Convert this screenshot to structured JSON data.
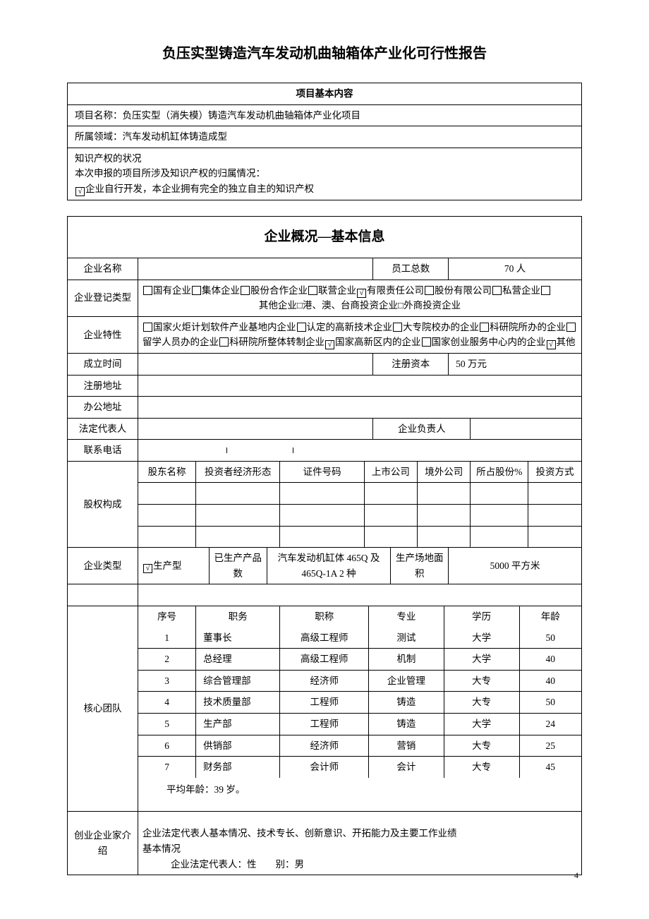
{
  "title": "负压实型铸造汽车发动机曲轴箱体产业化可行性报告",
  "page_num": "4",
  "project": {
    "header": "项目基本内容",
    "name_label": "项目名称：",
    "name_value": "负压实型（消失模）铸造汽车发动机曲轴箱体产业化项目",
    "field_label": "所属领域：",
    "field_value": "汽车发动机缸体铸造成型",
    "ip_status_label": "知识产权的状况",
    "ip_ownership_label": "本次申报的项目所涉及知识产权的归属情况：",
    "ip_option_text": "企业自行开发，本企业拥有完全的独立自主的知识产权"
  },
  "company": {
    "header": "企业概况—基本信息",
    "name_label": "企业名称",
    "staff_label": "员工总数",
    "staff_value": "70 人",
    "reg_type_label": "企业登记类型",
    "reg_type_line1_a": "国有企业",
    "reg_type_line1_b": "集体企业",
    "reg_type_line1_c": "股份合作企业",
    "reg_type_line1_d": "联营企业",
    "reg_type_line1_e": "有限责任公司",
    "reg_type_line1_f": "股份有限公司",
    "reg_type_line1_g": "私营企业",
    "reg_type_line2": "其他企业□港、澳、台商投资企业□外商投资企业",
    "trait_label": "企业特性",
    "trait_a": "国家火炬计划软件产业基地内企业",
    "trait_b": "认定的高新技术企业",
    "trait_c": "大专院校办的企业",
    "trait_d": "科研院所办的企业",
    "trait_e": "留学人员办的企业",
    "trait_f": "科研院所整体转制企业",
    "trait_g": "国家高新区内的企业",
    "trait_h": "国家创业服务中心内的企业",
    "trait_i": "其他",
    "founded_label": "成立时间",
    "capital_label": "注册资本",
    "capital_value": "50 万元",
    "reg_addr_label": "注册地址",
    "office_addr_label": "办公地址",
    "legal_rep_label": "法定代表人",
    "manager_label": "企业负责人",
    "phone_label": "联系电话",
    "equity_label": "股权构成",
    "equity_cols": {
      "c1": "股东名称",
      "c2": "投资者经济形态",
      "c3": "证件号码",
      "c4": "上市公司",
      "c5": "境外公司",
      "c6": "所占股份%",
      "c7": "投资方式"
    },
    "type_label": "企业类型",
    "type_prod": "生产型",
    "type_produced_label": "已生产产品数",
    "type_produced_value": "汽车发动机缸体 465Q 及465Q-1A 2 种",
    "type_area_label": "生产场地面积",
    "type_area_value": "5000 平方米",
    "team_label": "核心团队",
    "team_cols": {
      "c1": "序号",
      "c2": "职务",
      "c3": "职称",
      "c4": "专业",
      "c5": "学历",
      "c6": "年龄"
    },
    "team_rows": [
      {
        "n": "1",
        "pos": "董事长",
        "title": "高级工程师",
        "major": "测试",
        "edu": "大学",
        "age": "50"
      },
      {
        "n": "2",
        "pos": "总经理",
        "title": "高级工程师",
        "major": "机制",
        "edu": "大学",
        "age": "40"
      },
      {
        "n": "3",
        "pos": "综合管理部",
        "title": "经济师",
        "major": "企业管理",
        "edu": "大专",
        "age": "40"
      },
      {
        "n": "4",
        "pos": "技术质量部",
        "title": "工程师",
        "major": "铸造",
        "edu": "大专",
        "age": "50"
      },
      {
        "n": "5",
        "pos": "生产部",
        "title": "工程师",
        "major": "铸造",
        "edu": "大学",
        "age": "24"
      },
      {
        "n": "6",
        "pos": "供销部",
        "title": "经济师",
        "major": "营销",
        "edu": "大专",
        "age": "25"
      },
      {
        "n": "7",
        "pos": "财务部",
        "title": "会计师",
        "major": "会计",
        "edu": "大专",
        "age": "45"
      }
    ],
    "team_avg": "平均年龄：39 岁。",
    "entrepreneur_label": "创业企业家介绍",
    "entrepreneur_intro": "企业法定代表人基本情况、技术专长、创新意识、开拓能力及主要工作业绩",
    "entrepreneur_basic": "基本情况",
    "entrepreneur_rep": "企业法定代表人：性  别：男"
  }
}
